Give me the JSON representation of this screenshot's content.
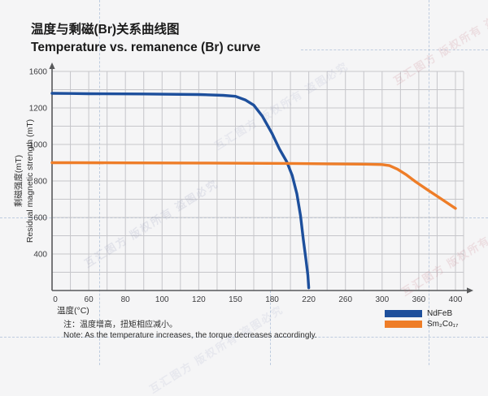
{
  "page": {
    "background": "#f5f5f6"
  },
  "watermark": {
    "text": "互汇图方 版权所有 盗图必究"
  },
  "header": {
    "title_zh": "温度与剩磁(Br)关系曲线图",
    "title_en": "Temperature vs. remanence (Br) curve"
  },
  "chart": {
    "y_axis_title_zh": "剩磁强度(mT)",
    "y_axis_title_en": "Residual magnetic strength (mT)",
    "x_axis_title": "温度(°C)",
    "note_zh": "注：温度增高，扭矩相应减小。",
    "note_en": "Note: As the temperature increases, the torque decreases accordingly.",
    "colors": {
      "ndfeb": "#1d4f9c",
      "sm2co17": "#ee7d28",
      "grid": "#c6c6ca",
      "axis": "#58595b",
      "tick_text": "#3c3c3f"
    },
    "legend": [
      {
        "label": "NdFeB",
        "color": "#1d4f9c"
      },
      {
        "label": "Sm₂Co₁₇",
        "color": "#ee7d28"
      }
    ]
  },
  "chart_data": {
    "type": "line",
    "title_zh": "温度与剩磁(Br)关系曲线图",
    "title_en": "Temperature vs. remanence (Br) curve",
    "xlabel": "温度(°C)",
    "ylabel_zh": "剩磁强度(mT)",
    "ylabel_en": "Residual magnetic strength (mT)",
    "x_ticks": [
      0,
      60,
      80,
      100,
      120,
      150,
      180,
      220,
      260,
      300,
      360,
      400
    ],
    "y_ticks": [
      0,
      400,
      600,
      800,
      1000,
      1200,
      1600
    ],
    "scale_note": "tick labels are equally spaced on both axes (non-uniform value steps); minor gridline at midpoint of every tick interval",
    "grid": "on",
    "legend_position": "bottom-right",
    "series": [
      {
        "name": "NdFeB",
        "color": "#1d4f9c",
        "points": [
          [
            0,
            1360
          ],
          [
            30,
            1358
          ],
          [
            60,
            1356
          ],
          [
            90,
            1353
          ],
          [
            120,
            1347
          ],
          [
            140,
            1338
          ],
          [
            150,
            1327
          ],
          [
            158,
            1288
          ],
          [
            165,
            1230
          ],
          [
            172,
            1155
          ],
          [
            180,
            1060
          ],
          [
            188,
            975
          ],
          [
            196,
            905
          ],
          [
            202,
            830
          ],
          [
            207,
            730
          ],
          [
            211,
            610
          ],
          [
            214,
            480
          ],
          [
            217,
            330
          ],
          [
            219,
            170
          ],
          [
            220,
            30
          ]
        ]
      },
      {
        "name": "Sm₂Co₁₇",
        "color": "#ee7d28",
        "points": [
          [
            0,
            900
          ],
          [
            40,
            900
          ],
          [
            80,
            899
          ],
          [
            120,
            898
          ],
          [
            160,
            897
          ],
          [
            200,
            896
          ],
          [
            240,
            894
          ],
          [
            280,
            892
          ],
          [
            300,
            890
          ],
          [
            312,
            884
          ],
          [
            325,
            865
          ],
          [
            340,
            833
          ],
          [
            355,
            795
          ],
          [
            370,
            750
          ],
          [
            385,
            700
          ],
          [
            400,
            650
          ]
        ]
      }
    ]
  }
}
